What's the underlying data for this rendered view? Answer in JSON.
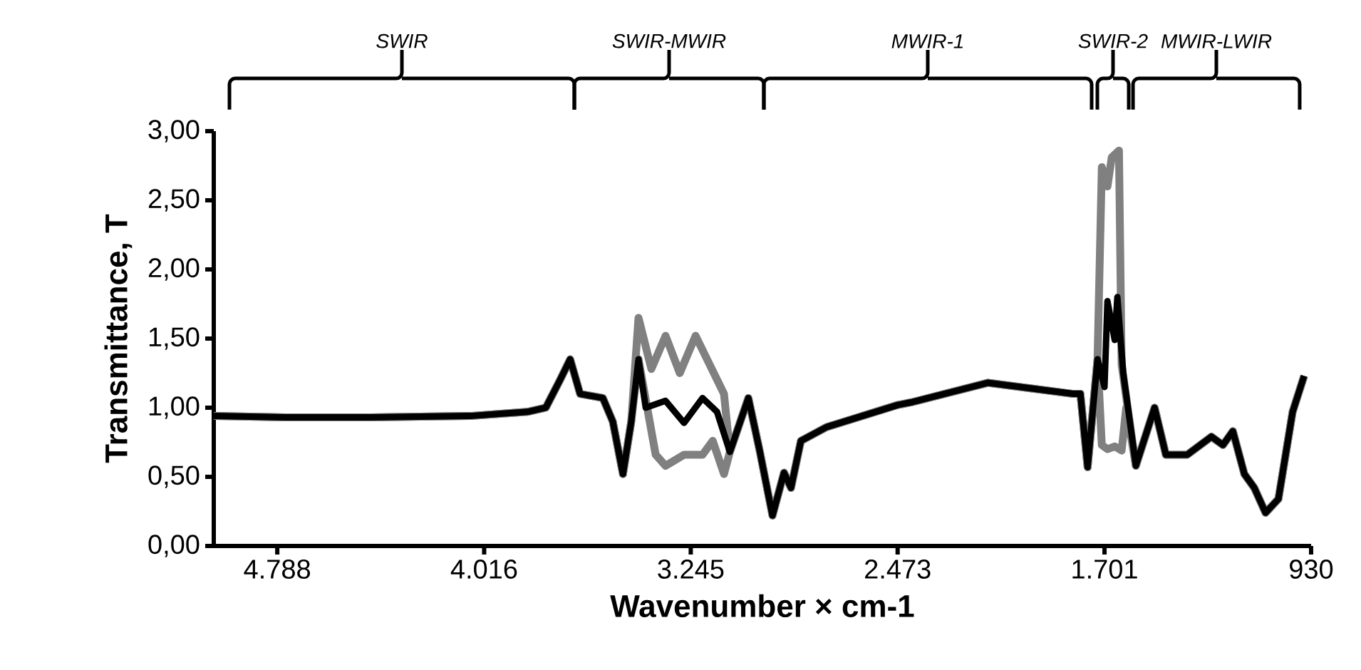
{
  "chart_data": {
    "type": "line",
    "xlabel": "Wavenumber × cm-1",
    "ylabel": "Transmittance, T",
    "xlim": [
      5025,
      930
    ],
    "ylim": [
      0,
      3
    ],
    "xticks": [
      {
        "value": 4788,
        "label": "4.788"
      },
      {
        "value": 4016,
        "label": "4.016"
      },
      {
        "value": 3245,
        "label": "3.245"
      },
      {
        "value": 2473,
        "label": "2.473"
      },
      {
        "value": 1701,
        "label": "1.701"
      },
      {
        "value": 930,
        "label": "930"
      }
    ],
    "yticks": [
      {
        "value": 0,
        "label": "0,00"
      },
      {
        "value": 0.5,
        "label": "0,50"
      },
      {
        "value": 1,
        "label": "1,00"
      },
      {
        "value": 1.5,
        "label": "1,50"
      },
      {
        "value": 2,
        "label": "2,00"
      },
      {
        "value": 2.5,
        "label": "2,50"
      },
      {
        "value": 3,
        "label": "3,00"
      }
    ],
    "grid": false,
    "marker": "none",
    "line_style": "solid",
    "annotations": [
      "SWIR",
      "SWIR-MWIR",
      "MWIR-1",
      "SWIR-2",
      "MWIR-LWIR"
    ],
    "series": [
      {
        "color": "#808080",
        "x": [
          5025,
          4759,
          4440,
          4068,
          3855,
          3786,
          3733,
          3695,
          3658,
          3573,
          3536,
          3498,
          3467,
          3440,
          3392,
          3339,
          3286,
          3227,
          3174,
          3121,
          3099,
          3030,
          2988,
          2940,
          2897,
          2871,
          2834,
          2738,
          2472,
          2419,
          2137,
          1818,
          1791,
          1764,
          1727,
          1711,
          1690,
          1674,
          1647,
          1637,
          1584,
          1514,
          1472,
          1392,
          1302,
          1259,
          1222,
          1179,
          1142,
          1100,
          1052,
          999,
          956
        ],
        "values": [
          0.94,
          0.93,
          0.93,
          0.94,
          0.97,
          1.0,
          1.2,
          1.35,
          1.1,
          1.07,
          0.9,
          0.52,
          0.9,
          1.65,
          1.28,
          1.52,
          1.25,
          1.52,
          1.31,
          1.1,
          0.68,
          1.07,
          0.69,
          0.22,
          0.53,
          0.42,
          0.76,
          0.86,
          1.02,
          1.04,
          1.18,
          1.1,
          1.1,
          0.57,
          1.35,
          2.74,
          2.6,
          2.81,
          2.86,
          1.31,
          0.58,
          1.0,
          0.66,
          0.66,
          0.79,
          0.73,
          0.83,
          0.52,
          0.42,
          0.24,
          0.34,
          0.97,
          1.23
        ]
      },
      {
        "color": "#808080",
        "x": [
          5025,
          4759,
          4440,
          4068,
          3855,
          3786,
          3733,
          3695,
          3658,
          3573,
          3536,
          3498,
          3467,
          3440,
          3376,
          3339,
          3270,
          3201,
          3163,
          3121,
          3099,
          3030,
          2988,
          2940,
          2897,
          2871,
          2834,
          2738,
          2472,
          2419,
          2137,
          1818,
          1791,
          1764,
          1727,
          1711,
          1690,
          1663,
          1637,
          1620,
          1584,
          1514,
          1472,
          1392,
          1302,
          1259,
          1222,
          1179,
          1142,
          1100,
          1052,
          999,
          956
        ],
        "values": [
          0.94,
          0.93,
          0.93,
          0.94,
          0.97,
          1.0,
          1.2,
          1.35,
          1.1,
          1.07,
          0.9,
          0.52,
          0.9,
          1.35,
          0.66,
          0.58,
          0.66,
          0.66,
          0.76,
          0.52,
          0.68,
          1.07,
          0.69,
          0.22,
          0.53,
          0.42,
          0.76,
          0.86,
          1.02,
          1.04,
          1.18,
          1.1,
          1.1,
          0.57,
          1.35,
          0.73,
          0.7,
          0.72,
          0.69,
          1.0,
          0.58,
          1.0,
          0.66,
          0.66,
          0.79,
          0.73,
          0.83,
          0.52,
          0.42,
          0.24,
          0.34,
          0.97,
          1.23
        ]
      },
      {
        "color": "#000000",
        "x": [
          5025,
          4759,
          4440,
          4068,
          3855,
          3786,
          3733,
          3695,
          3658,
          3573,
          3536,
          3498,
          3467,
          3440,
          3413,
          3339,
          3270,
          3201,
          3147,
          3099,
          3030,
          2988,
          2940,
          2897,
          2871,
          2834,
          2738,
          2472,
          2419,
          2137,
          1818,
          1791,
          1764,
          1727,
          1701,
          1690,
          1663,
          1653,
          1631,
          1584,
          1514,
          1472,
          1392,
          1302,
          1259,
          1222,
          1179,
          1142,
          1100,
          1052,
          999,
          956
        ],
        "values": [
          0.94,
          0.93,
          0.93,
          0.94,
          0.97,
          1.0,
          1.2,
          1.35,
          1.1,
          1.07,
          0.9,
          0.52,
          0.9,
          1.35,
          1.0,
          1.05,
          0.89,
          1.07,
          0.97,
          0.68,
          1.07,
          0.69,
          0.22,
          0.53,
          0.42,
          0.76,
          0.86,
          1.02,
          1.04,
          1.18,
          1.1,
          1.1,
          0.57,
          1.35,
          1.15,
          1.77,
          1.49,
          1.8,
          1.25,
          0.58,
          1.0,
          0.66,
          0.66,
          0.79,
          0.73,
          0.83,
          0.52,
          0.42,
          0.24,
          0.34,
          0.97,
          1.23
        ]
      }
    ]
  }
}
